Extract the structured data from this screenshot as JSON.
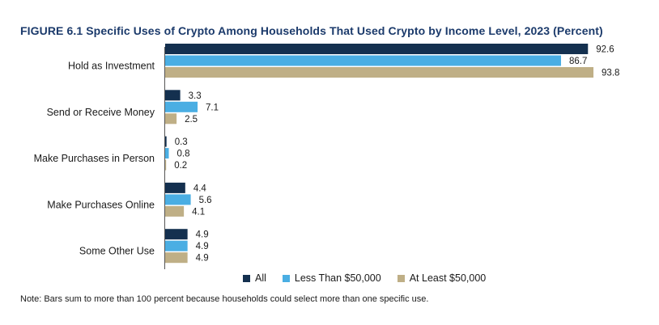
{
  "title": "FIGURE 6.1 Specific Uses of Crypto Among Households That Used Crypto by Income Level, 2023 (Percent)",
  "note": "Note: Bars sum to more than 100 percent because households could select more than one specific use.",
  "chart_data": {
    "type": "bar",
    "orientation": "horizontal",
    "title": "FIGURE 6.1 Specific Uses of Crypto Among Households That Used Crypto by Income Level, 2023 (Percent)",
    "categories": [
      "Hold as Investment",
      "Send or Receive Money",
      "Make Purchases in Person",
      "Make Purchases Online",
      "Some Other Use"
    ],
    "series": [
      {
        "name": "All",
        "color": "#14304f",
        "values": [
          92.6,
          3.3,
          0.3,
          4.4,
          4.9
        ],
        "labels": [
          "92.6",
          "3.3",
          "0.3",
          "4.4",
          "4.9"
        ]
      },
      {
        "name": "Less Than $50,000",
        "color": "#4aaee3",
        "values": [
          86.7,
          7.1,
          0.8,
          5.6,
          4.9
        ],
        "labels": [
          "86.7",
          "7.1",
          "0.8",
          "5.6",
          "4.9"
        ]
      },
      {
        "name": "At Least $50,000",
        "color": "#bfaf86",
        "values": [
          93.8,
          2.5,
          0.2,
          4.1,
          4.9
        ],
        "labels": [
          "93.8",
          "2.5",
          "0.2",
          "4.1",
          "4.9"
        ]
      }
    ],
    "xlim": [
      0,
      100
    ],
    "grid": false,
    "legend_position": "bottom"
  }
}
